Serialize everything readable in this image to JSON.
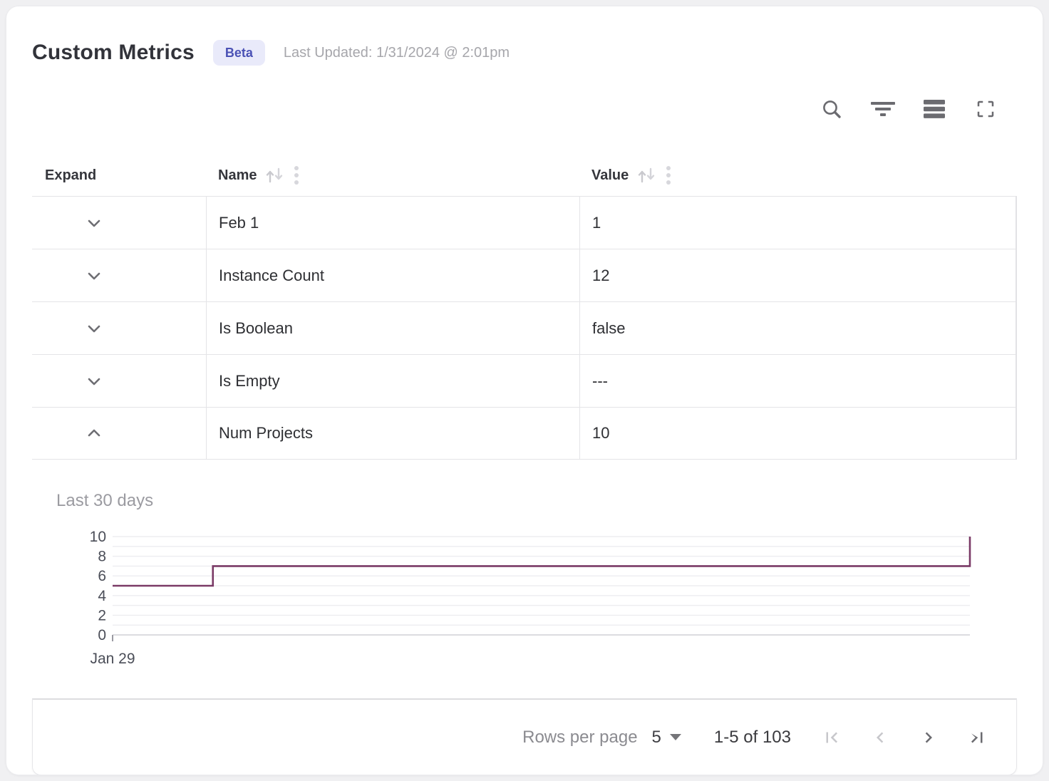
{
  "header": {
    "title": "Custom Metrics",
    "badge": "Beta",
    "last_updated": "Last Updated: 1/31/2024 @ 2:01pm"
  },
  "toolbar": {
    "icons": [
      "search-icon",
      "filter-icon",
      "density-icon",
      "fullscreen-icon"
    ]
  },
  "table": {
    "columns": [
      {
        "label": "Expand",
        "sortable": false
      },
      {
        "label": "Name",
        "sortable": true
      },
      {
        "label": "Value",
        "sortable": true
      }
    ],
    "rows": [
      {
        "name": "Feb 1",
        "value": "1",
        "expanded": false
      },
      {
        "name": "Instance Count",
        "value": "12",
        "expanded": false
      },
      {
        "name": "Is Boolean",
        "value": "false",
        "expanded": false
      },
      {
        "name": "Is Empty",
        "value": "---",
        "expanded": false
      },
      {
        "name": "Num Projects",
        "value": "10",
        "expanded": true
      }
    ]
  },
  "chart_data": {
    "type": "line",
    "subtype": "step-after",
    "title": "Last 30 days",
    "series": [
      {
        "name": "Num Projects",
        "color": "#7a3a66",
        "points": [
          {
            "x": 0,
            "y": 5
          },
          {
            "x": 0.117,
            "y": 7
          },
          {
            "x": 1,
            "y": 10
          }
        ]
      }
    ],
    "ylim": [
      0,
      10
    ],
    "y_ticks": [
      0,
      2,
      4,
      6,
      8,
      10
    ],
    "grid_step": 1,
    "x_tick_labels": [
      "Jan 29"
    ],
    "grid": true,
    "legend": "none"
  },
  "pagination": {
    "rows_per_page_label": "Rows per page",
    "rows_per_page_value": "5",
    "range_label": "1-5 of 103",
    "first_page_disabled": true,
    "prev_page_disabled": true,
    "next_page_disabled": false,
    "last_page_disabled": false
  },
  "colors": {
    "badge_bg": "#e9eafa",
    "badge_text": "#4a51b5",
    "line": "#7a3a66",
    "icon_gray": "#6b6b70",
    "icon_disabled": "#c7c7cb",
    "grid_line": "#ededf0"
  }
}
